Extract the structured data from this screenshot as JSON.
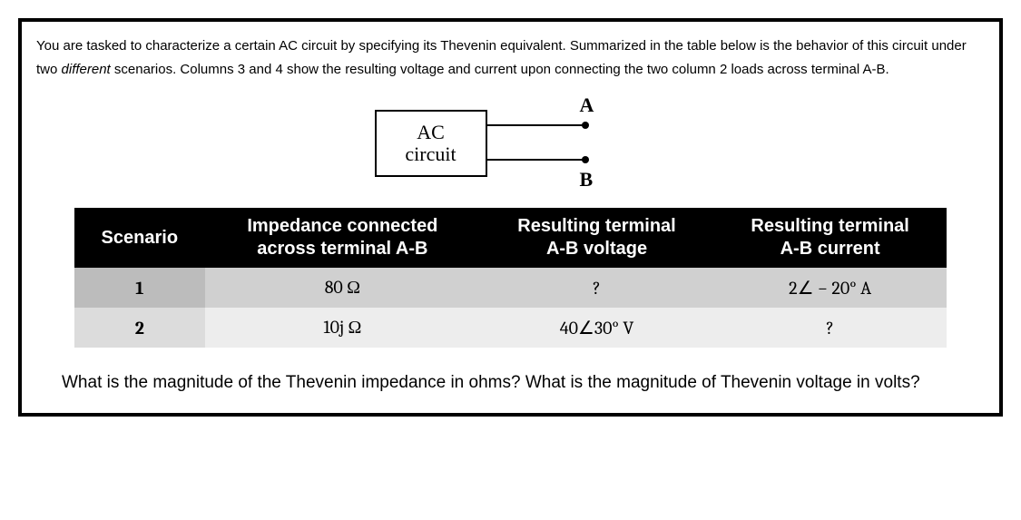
{
  "intro": {
    "part1": "You are tasked to characterize a certain AC circuit by specifying its Thevenin equivalent. Summarized in the table below is the behavior of this circuit under two ",
    "ital": "different",
    "part2": " scenarios. Columns 3 and 4 show the resulting voltage and current upon connecting the two column 2 loads across terminal A-B."
  },
  "diagram": {
    "box_line1": "AC",
    "box_line2": "circuit",
    "terminal_a": "A",
    "terminal_b": "B"
  },
  "table": {
    "headers": {
      "c1": "Scenario",
      "c2_l1": "Impedance connected",
      "c2_l2": "across terminal A-B",
      "c3_l1": "Resulting terminal",
      "c3_l2": "A-B voltage",
      "c4_l1": "Resulting terminal",
      "c4_l2": "A-B current"
    },
    "row1": {
      "scenario": "1",
      "impedance": "80 Ω",
      "voltage": "?",
      "current": "2∠ − 20° A"
    },
    "row2": {
      "scenario": "2",
      "impedance": "10j Ω",
      "voltage": "40∠30° V",
      "current": "?"
    },
    "row1_bg": "#d0d0d0",
    "row2_bg": "#ededed",
    "header_bg": "#000000",
    "header_fg": "#ffffff"
  },
  "question": "What is the magnitude of the Thevenin impedance in ohms? What is the magnitude of Thevenin voltage in volts?"
}
